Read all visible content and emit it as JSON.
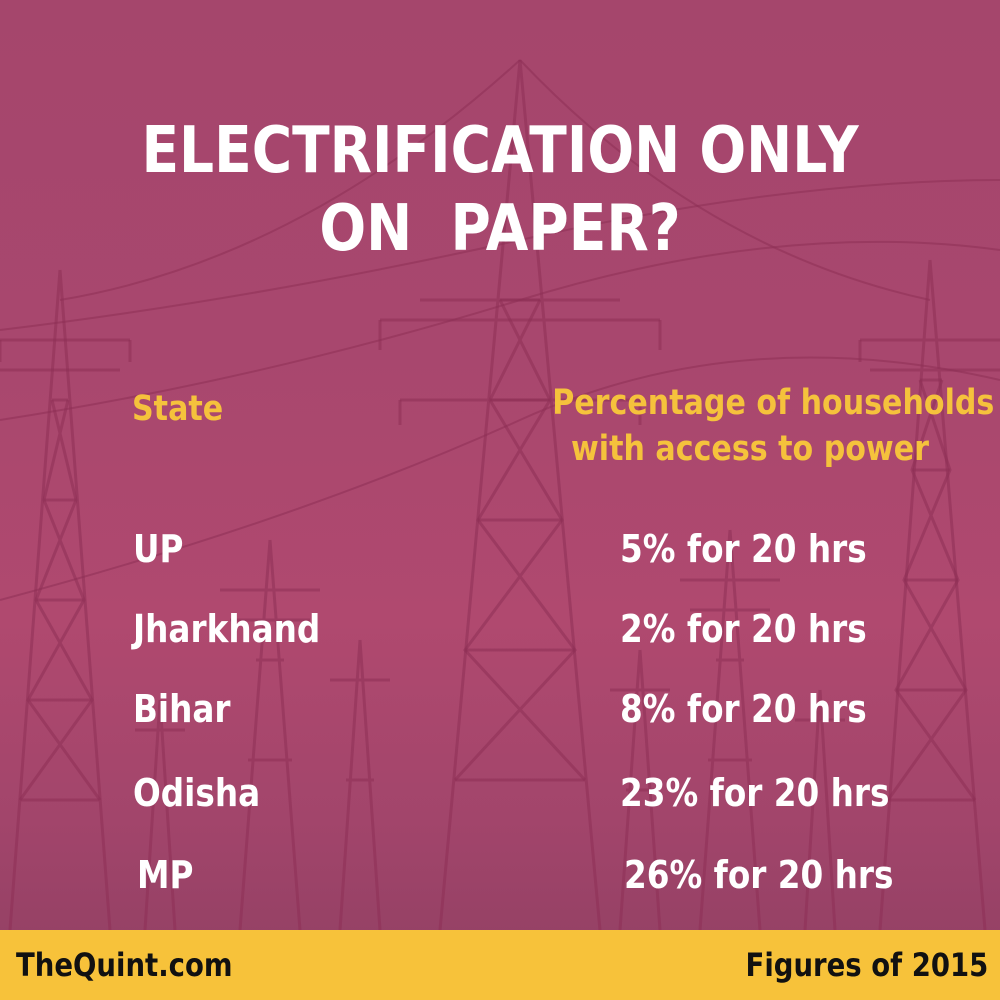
{
  "title": {
    "line1": "ELECTRIFICATION ONLY",
    "line2": "ON  PAPER?"
  },
  "chart_data": {
    "type": "table",
    "columns": {
      "state": "State",
      "value_line1": "Percentage of households",
      "value_line2": "with access to power"
    },
    "rows": [
      {
        "state": "UP",
        "value": "5% for 20 hrs",
        "percent": 5,
        "hours": 20
      },
      {
        "state": "Jharkhand",
        "value": "2% for 20 hrs",
        "percent": 2,
        "hours": 20
      },
      {
        "state": "Bihar",
        "value": "8% for 20 hrs",
        "percent": 8,
        "hours": 20
      },
      {
        "state": "Odisha",
        "value": "23% for 20 hrs",
        "percent": 23,
        "hours": 20
      },
      {
        "state": "MP",
        "value": "26% for 20 hrs",
        "percent": 26,
        "hours": 20
      }
    ]
  },
  "footer": {
    "source": "TheQuint.com",
    "note": "Figures of 2015"
  },
  "colors": {
    "background": "#a8476e",
    "header_text": "#f5c23c",
    "body_text": "#ffffff",
    "footer_bar": "#f7c23a",
    "footer_text": "#111111"
  },
  "icons": {
    "background_art": "power-transmission-towers"
  }
}
